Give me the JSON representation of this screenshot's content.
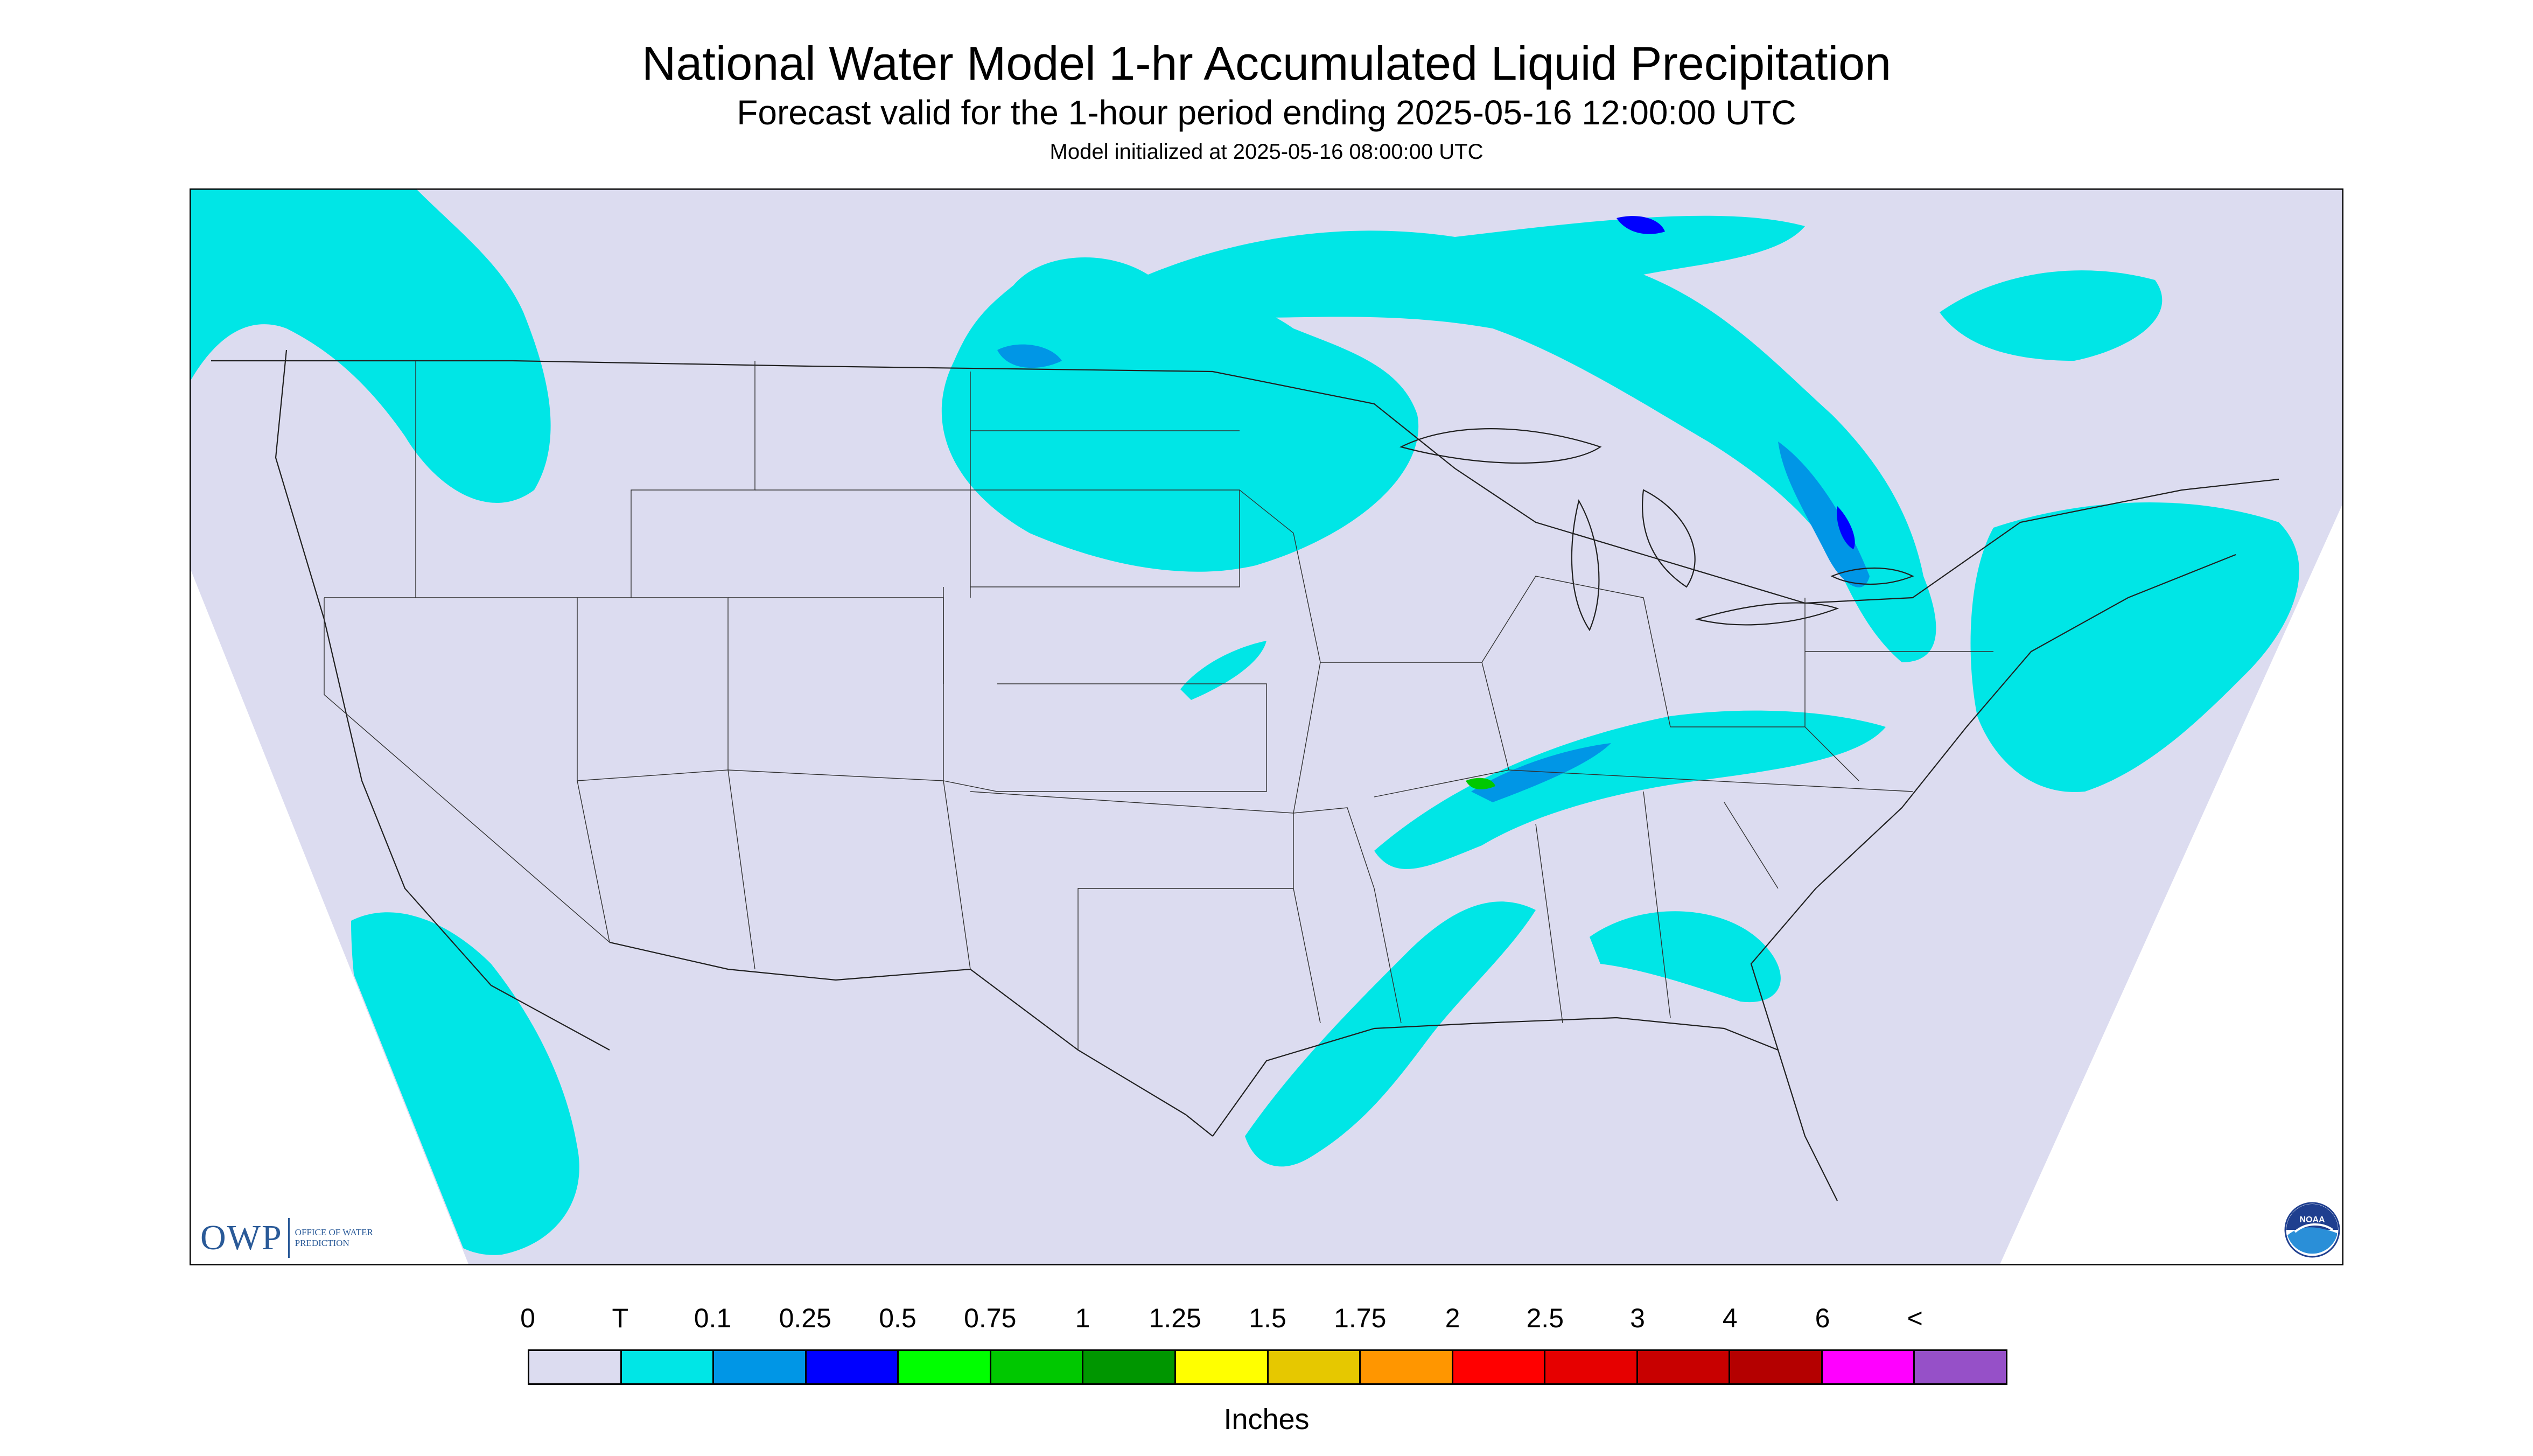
{
  "title": "National Water Model 1-hr Accumulated Liquid Precipitation",
  "subtitle": "Forecast valid for the 1-hour period ending 2025-05-16 12:00:00 UTC",
  "init_line": "Model initialized at 2025-05-16 08:00:00 UTC",
  "logos": {
    "owp_mark": "OWP",
    "owp_text": "OFFICE OF WATER PREDICTION",
    "noaa_text": "NOAA"
  },
  "colors": {
    "background_fill": "#dcdcf0",
    "map_border": "#000000",
    "outside_domain": "#ffffff",
    "precip_trace": "#00e6e6",
    "precip_light": "#0096e6",
    "precip_moderate": "#0000ff",
    "precip_heavy": "#00c800"
  },
  "legend": {
    "units": "Inches",
    "labels": [
      "0",
      "T",
      "0.1",
      "0.25",
      "0.5",
      "0.75",
      "1",
      "1.25",
      "1.5",
      "1.75",
      "2",
      "2.5",
      "3",
      "4",
      "6",
      "<"
    ],
    "colors": [
      "#dcdcf0",
      "#00e6e6",
      "#0096e6",
      "#0000ff",
      "#00ff00",
      "#00c800",
      "#009600",
      "#ffff00",
      "#e6c800",
      "#ff9600",
      "#ff0000",
      "#e60000",
      "#c80000",
      "#b40000",
      "#ff00ff",
      "#9650c8"
    ]
  }
}
